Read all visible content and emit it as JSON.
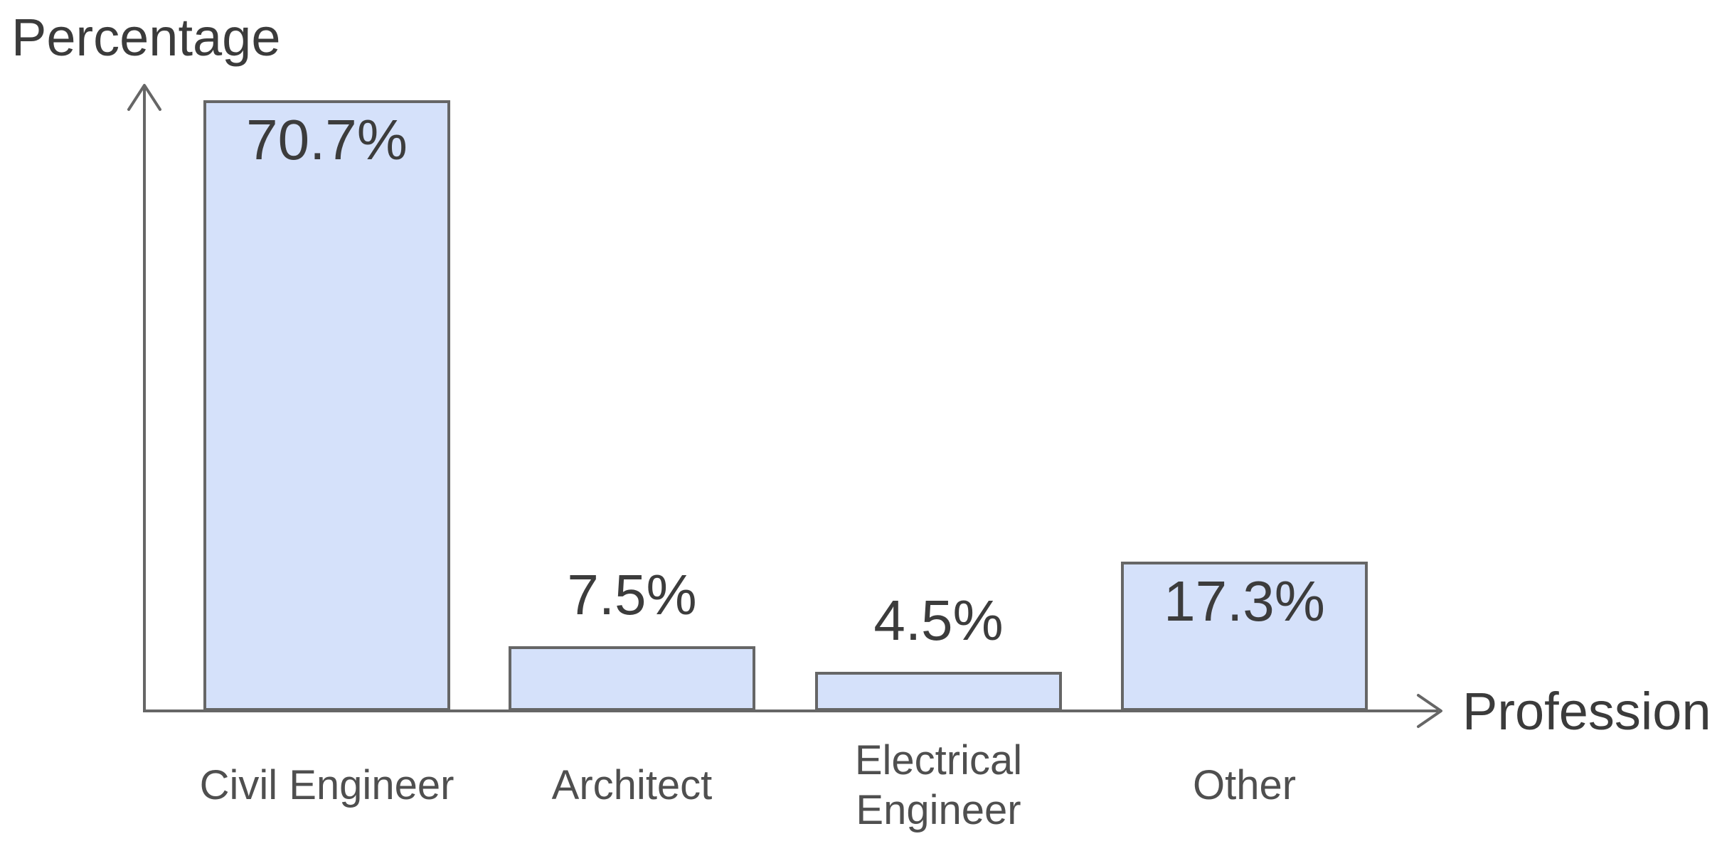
{
  "chart_data": {
    "type": "bar",
    "title": "",
    "ylabel": "Percentage",
    "xlabel": "Profession",
    "categories": [
      "Civil Engineer",
      "Architect",
      "Electrical Engineer",
      "Other"
    ],
    "values": [
      70.7,
      7.5,
      4.5,
      17.3
    ],
    "value_labels": [
      "70.7%",
      "7.5%",
      "4.5%",
      "17.3%"
    ],
    "value_label_placement": [
      "inside-top",
      "above",
      "above",
      "inside-top"
    ],
    "ylim": [
      0,
      73
    ],
    "grid": false,
    "axis_ticks": "none",
    "legend": "none",
    "colors": {
      "bar_fill": "#d5e1fa",
      "bar_border": "#666666",
      "axis": "#666666",
      "value_text": "#3c3c3c",
      "category_text": "#4f4f4f",
      "axis_title_text": "#3b3b3b",
      "background": "#ffffff"
    }
  }
}
